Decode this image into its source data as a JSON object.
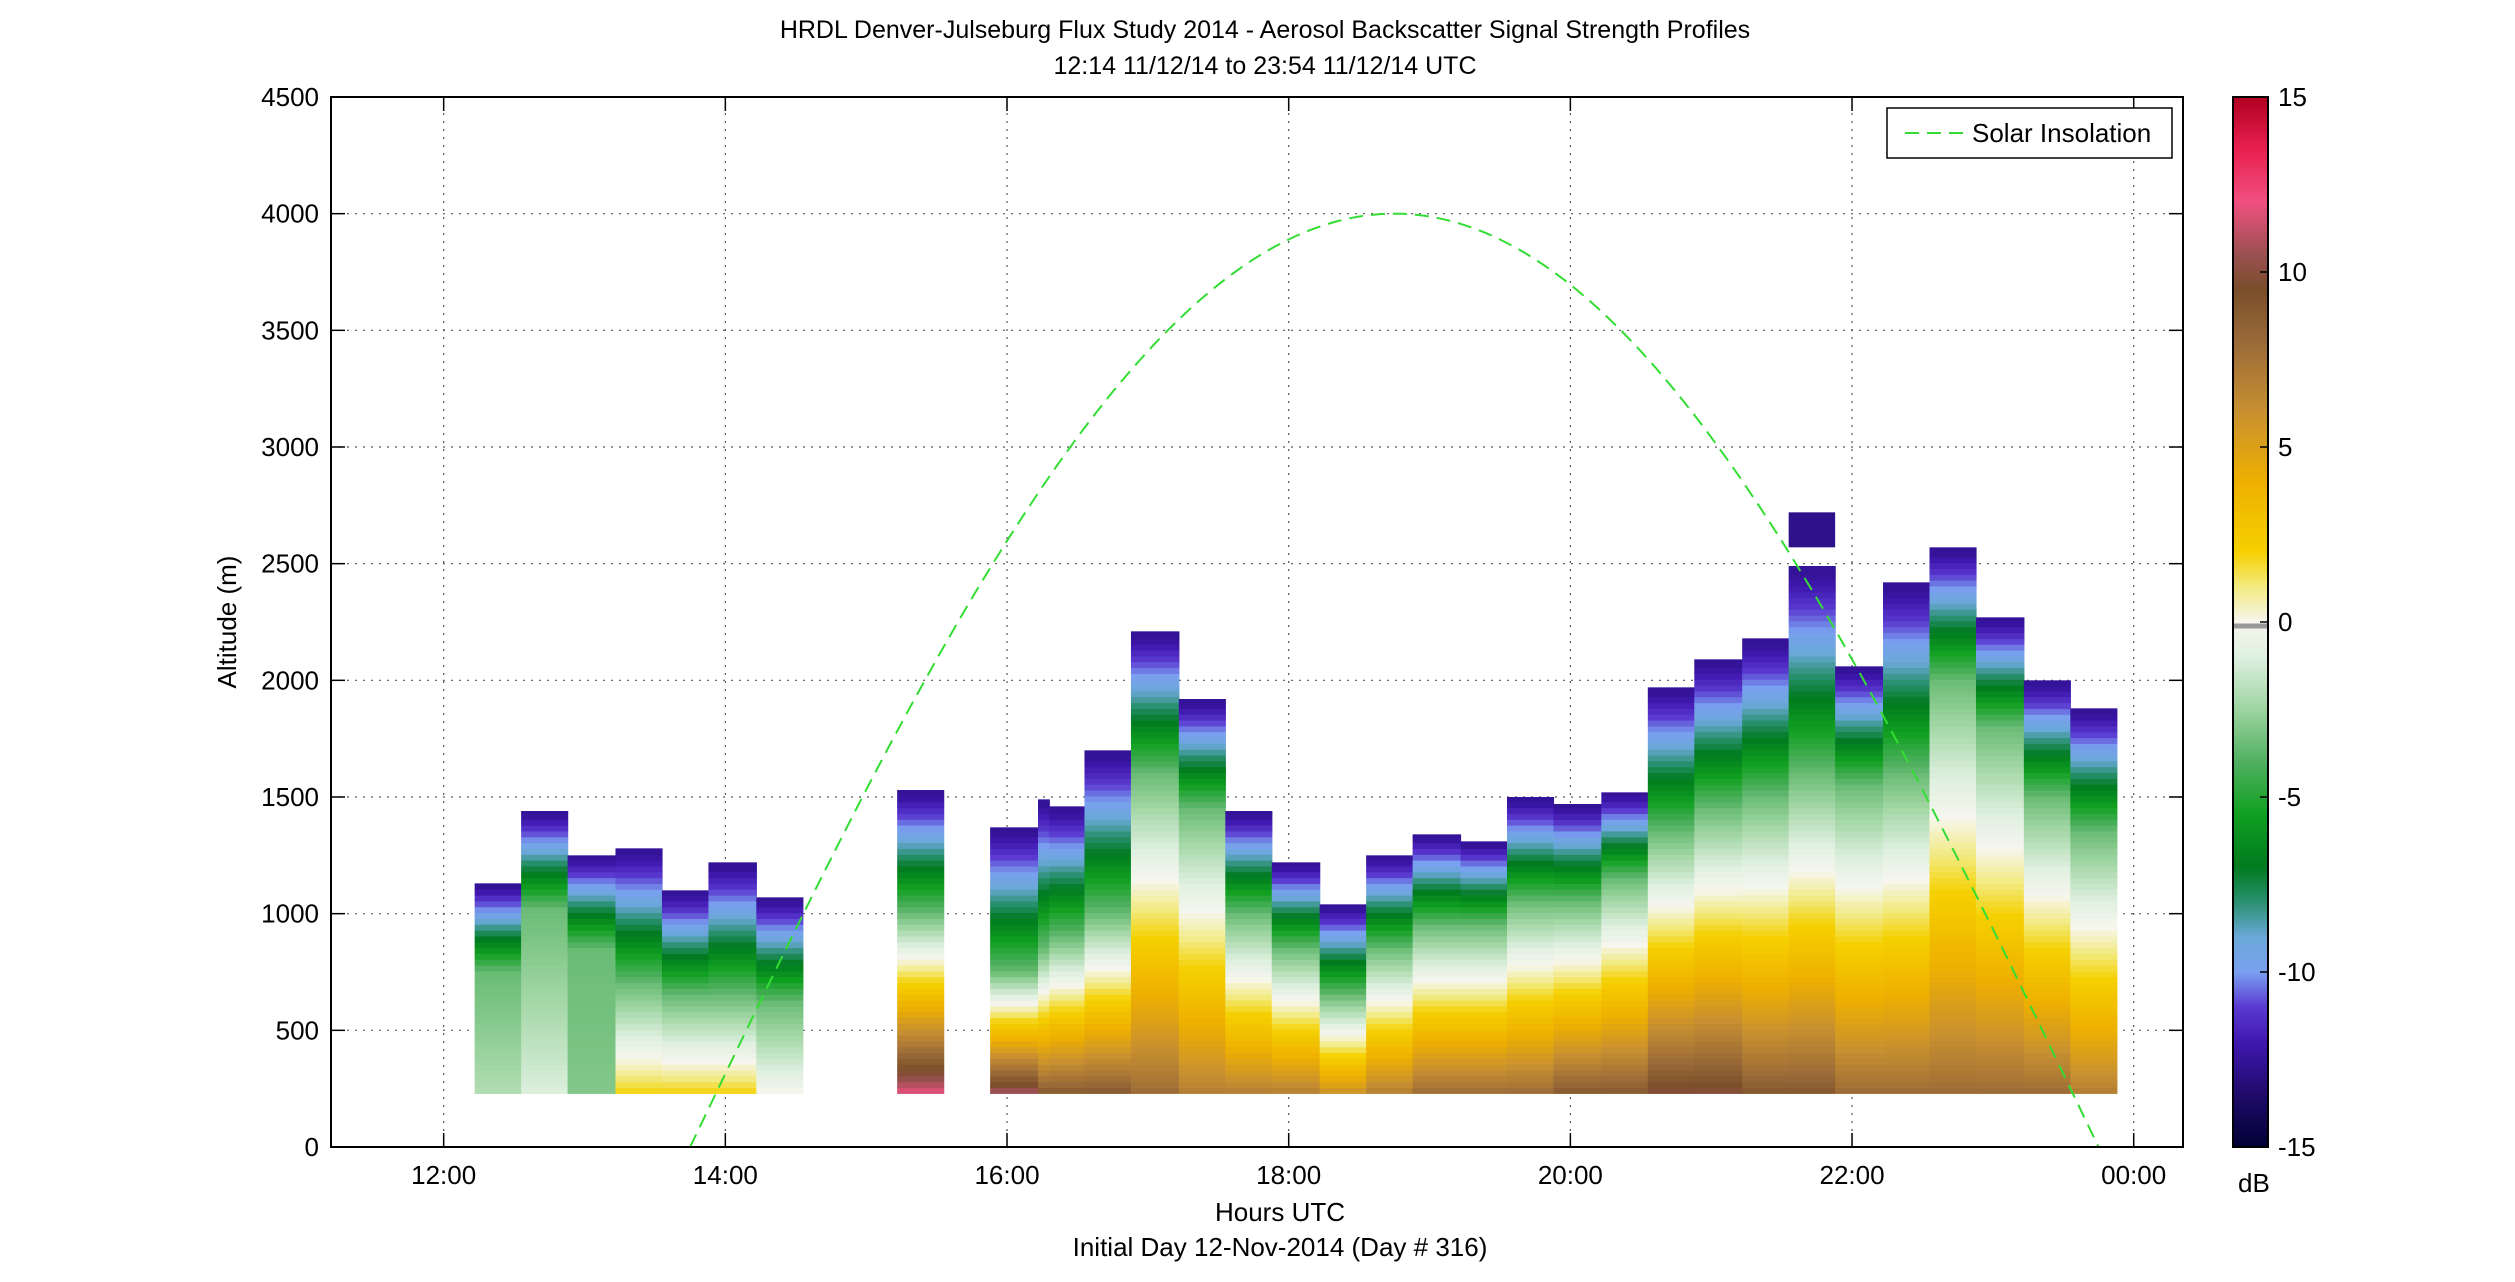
{
  "chart_data": {
    "type": "heatmap",
    "title": "HRDL Denver-Julseburg Flux Study 2014 - Aerosol Backscatter Signal Strength Profiles",
    "subtitle": "12:14 11/12/14 to 23:54 11/12/14  UTC",
    "xlabel": "Hours UTC",
    "xlabel2": "Initial Day 12-Nov-2014 (Day # 316)",
    "ylabel": "Altitude (m)",
    "xlim_hours": [
      11.2,
      24.35
    ],
    "ylim": [
      0,
      4500
    ],
    "x_ticks": [
      {
        "value": 12,
        "label": "12:00"
      },
      {
        "value": 14,
        "label": "14:00"
      },
      {
        "value": 16,
        "label": "16:00"
      },
      {
        "value": 18,
        "label": "18:00"
      },
      {
        "value": 20,
        "label": "20:00"
      },
      {
        "value": 22,
        "label": "22:00"
      },
      {
        "value": 24,
        "label": "00:00"
      }
    ],
    "y_ticks": [
      0,
      500,
      1000,
      1500,
      2000,
      2500,
      3000,
      3500,
      4000,
      4500
    ],
    "grid": true,
    "legend": {
      "position": "top-right",
      "entries": [
        {
          "label": "Solar Insolation",
          "color": "#33dd33",
          "style": "dashed"
        }
      ]
    },
    "colorbar": {
      "min": -15,
      "max": 15,
      "unit": "dB",
      "ticks": [
        {
          "value": 15,
          "label": "15"
        },
        {
          "value": 10,
          "label": "10"
        },
        {
          "value": 5,
          "label": "5"
        },
        {
          "value": 0,
          "label": "0"
        },
        {
          "value": -5,
          "label": "-5"
        },
        {
          "value": -10,
          "label": "-10"
        },
        {
          "value": -15,
          "label": "-15"
        }
      ],
      "colormap": [
        {
          "v": -15,
          "c": "#000033"
        },
        {
          "v": -13.5,
          "c": "#1f0a6b"
        },
        {
          "v": -12,
          "c": "#4018b0"
        },
        {
          "v": -11,
          "c": "#5a3ad0"
        },
        {
          "v": -10,
          "c": "#7aa0f0"
        },
        {
          "v": -9,
          "c": "#6aa8d8"
        },
        {
          "v": -8,
          "c": "#2a9070"
        },
        {
          "v": -7,
          "c": "#007a1f"
        },
        {
          "v": -5.5,
          "c": "#10a020"
        },
        {
          "v": -4,
          "c": "#50b060"
        },
        {
          "v": -2.5,
          "c": "#9dd4a0"
        },
        {
          "v": -1,
          "c": "#dff0e0"
        },
        {
          "v": 0,
          "c": "#f6f6ee"
        },
        {
          "v": 1,
          "c": "#f2ea80"
        },
        {
          "v": 2,
          "c": "#f5d000"
        },
        {
          "v": 4,
          "c": "#eeb000"
        },
        {
          "v": 6,
          "c": "#c89030"
        },
        {
          "v": 8,
          "c": "#9a6a38"
        },
        {
          "v": 9.5,
          "c": "#7a4e2a"
        },
        {
          "v": 10.5,
          "c": "#9a5050"
        },
        {
          "v": 12,
          "c": "#f05080"
        },
        {
          "v": 13.5,
          "c": "#e82050"
        },
        {
          "v": 15,
          "c": "#b00020"
        }
      ]
    },
    "profiles": [
      {
        "t0": 12.22,
        "t1": 12.55,
        "top": 1130,
        "bl": 750,
        "sfc": -2
      },
      {
        "t0": 12.55,
        "t1": 12.88,
        "top": 1440,
        "bl": 1020,
        "sfc": -1
      },
      {
        "t0": 12.88,
        "t1": 13.22,
        "top": 1250,
        "bl": 850,
        "sfc": -3
      },
      {
        "t0": 13.22,
        "t1": 13.55,
        "top": 1280,
        "bl": 700,
        "sfc": 2
      },
      {
        "t0": 13.55,
        "t1": 13.88,
        "top": 1100,
        "bl": 650,
        "sfc": 2
      },
      {
        "t0": 13.88,
        "t1": 14.22,
        "top": 1220,
        "bl": 650,
        "sfc": 2
      },
      {
        "t0": 14.22,
        "t1": 14.55,
        "top": 1070,
        "bl": 620,
        "sfc": 0
      },
      {
        "t0": 15.22,
        "t1": 15.55,
        "top": 1530,
        "bl": 1000,
        "sfc": 12
      },
      {
        "t0": 15.88,
        "t1": 16.22,
        "top": 1370,
        "bl": 750,
        "sfc": 11
      },
      {
        "t0": 16.22,
        "t1": 16.3,
        "top": 1490,
        "bl": 850,
        "sfc": 9
      },
      {
        "t0": 16.3,
        "t1": 16.55,
        "top": 1460,
        "bl": 900,
        "sfc": 9
      },
      {
        "t0": 16.55,
        "t1": 16.88,
        "top": 1700,
        "bl": 1000,
        "sfc": 9
      },
      {
        "t0": 16.88,
        "t1": 17.22,
        "top": 2210,
        "bl": 1600,
        "sfc": 8
      },
      {
        "t0": 17.22,
        "t1": 17.55,
        "top": 1920,
        "bl": 1450,
        "sfc": 7
      },
      {
        "t0": 17.55,
        "t1": 17.88,
        "top": 1440,
        "bl": 1000,
        "sfc": 7
      },
      {
        "t0": 17.88,
        "t1": 18.22,
        "top": 1220,
        "bl": 850,
        "sfc": 7
      },
      {
        "t0": 18.22,
        "t1": 18.55,
        "top": 1040,
        "bl": 650,
        "sfc": 6
      },
      {
        "t0": 18.55,
        "t1": 18.88,
        "top": 1250,
        "bl": 850,
        "sfc": 7
      },
      {
        "t0": 18.88,
        "t1": 19.22,
        "top": 1340,
        "bl": 950,
        "sfc": 8
      },
      {
        "t0": 19.22,
        "t1": 19.55,
        "top": 1310,
        "bl": 950,
        "sfc": 8
      },
      {
        "t0": 19.55,
        "t1": 19.88,
        "top": 1500,
        "bl": 1050,
        "sfc": 8
      },
      {
        "t0": 19.88,
        "t1": 20.22,
        "top": 1470,
        "bl": 1050,
        "sfc": 9
      },
      {
        "t0": 20.22,
        "t1": 20.55,
        "top": 1520,
        "bl": 1150,
        "sfc": 9
      },
      {
        "t0": 20.55,
        "t1": 20.88,
        "top": 1970,
        "bl": 1350,
        "sfc": 10
      },
      {
        "t0": 20.88,
        "t1": 21.22,
        "top": 2090,
        "bl": 1450,
        "sfc": 10
      },
      {
        "t0": 21.22,
        "t1": 21.55,
        "top": 2180,
        "bl": 1500,
        "sfc": 9
      },
      {
        "t0": 21.55,
        "t1": 21.88,
        "top": 2490,
        "bl": 1600,
        "sfc": 9
      },
      {
        "t0": 21.88,
        "t1": 22.22,
        "top": 2060,
        "bl": 1550,
        "sfc": 8
      },
      {
        "t0": 22.22,
        "t1": 22.55,
        "top": 2420,
        "bl": 1600,
        "sfc": 8
      },
      {
        "t0": 22.55,
        "t1": 22.88,
        "top": 2570,
        "bl": 2000,
        "sfc": 8
      },
      {
        "t0": 22.88,
        "t1": 23.22,
        "top": 2270,
        "bl": 1800,
        "sfc": 8
      },
      {
        "t0": 23.22,
        "t1": 23.55,
        "top": 2000,
        "bl": 1500,
        "sfc": 8
      },
      {
        "t0": 23.55,
        "t1": 23.88,
        "top": 1880,
        "bl": 1350,
        "sfc": 7
      }
    ],
    "profile_floor": 230,
    "aloft_layer": {
      "t0": 21.55,
      "t1": 21.88,
      "bottom": 2570,
      "top": 2720
    },
    "solar_insolation": {
      "t_rise": 13.75,
      "t_peak": 18.75,
      "t_set": 23.75,
      "peak_altitude_equiv": 4000
    }
  }
}
